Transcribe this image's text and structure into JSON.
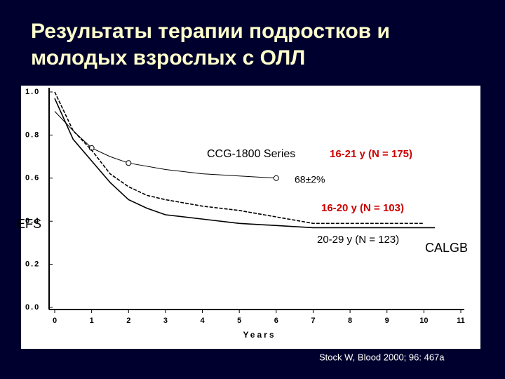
{
  "title": [
    "Результаты терапии подростков и",
    "молодых взрослых с ОЛЛ"
  ],
  "chart_data": {
    "type": "line",
    "ylabel": "EFS",
    "xlabel": "Years",
    "xlim": [
      0,
      11
    ],
    "ylim": [
      0,
      1
    ],
    "xticks": [
      0,
      1,
      2,
      3,
      4,
      5,
      6,
      7,
      8,
      9,
      10,
      11
    ],
    "yticks": [
      {
        "value": 0,
        "label": "0.0"
      },
      {
        "value": 0.2,
        "label": "0.2"
      },
      {
        "value": 0.4,
        "label": "0.4"
      },
      {
        "value": 0.6,
        "label": "0.6"
      },
      {
        "value": 0.8,
        "label": "0.8"
      },
      {
        "value": 1,
        "label": "1.0"
      }
    ],
    "series": [
      {
        "name": "16-21 y (N = 175)",
        "color": "#000000",
        "markers": true,
        "x": [
          0,
          0.5,
          1,
          1.5,
          2,
          3,
          4,
          5,
          6
        ],
        "values": [
          0.91,
          0.82,
          0.74,
          0.7,
          0.67,
          0.64,
          0.62,
          0.61,
          0.6
        ]
      },
      {
        "name": "16-20 y (N = 103)",
        "color": "#000000",
        "markers": false,
        "x": [
          0,
          0.5,
          1,
          1.5,
          2,
          2.5,
          3,
          4,
          5,
          6,
          7,
          8,
          9,
          10
        ],
        "values": [
          1.0,
          0.82,
          0.73,
          0.62,
          0.56,
          0.52,
          0.5,
          0.47,
          0.45,
          0.42,
          0.39,
          0.39,
          0.39,
          0.39
        ]
      },
      {
        "name": "20-29 y (N = 123)",
        "color": "#000000",
        "markers": false,
        "x": [
          0,
          0.5,
          1,
          1.5,
          2,
          2.5,
          3,
          4,
          5,
          6,
          7,
          8,
          9,
          10,
          10.3
        ],
        "values": [
          0.97,
          0.78,
          0.68,
          0.58,
          0.5,
          0.46,
          0.43,
          0.41,
          0.39,
          0.38,
          0.37,
          0.37,
          0.37,
          0.37,
          0.37
        ]
      }
    ],
    "annotations": [
      {
        "text": "CCG-1800 Series",
        "color": "#000000"
      },
      {
        "text": "16-21 y (N = 175)",
        "color": "#cc0000"
      },
      {
        "text": "68±2%",
        "color": "#000000"
      },
      {
        "text": "16-20 y (N = 103)",
        "color": "#cc0000"
      },
      {
        "text": "20-29 y (N = 123)",
        "color": "#000000"
      },
      {
        "text": "CALGB",
        "color": "#000000"
      }
    ]
  },
  "source": "Stock W, Blood 2000; 96: 467a"
}
